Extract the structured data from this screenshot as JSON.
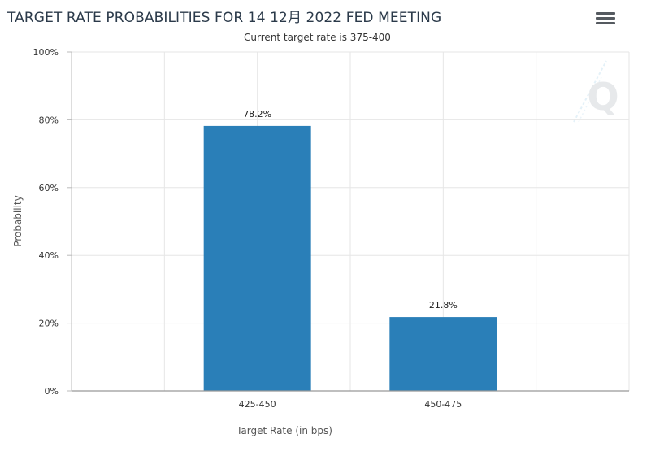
{
  "header": {
    "title": "TARGET RATE PROBABILITIES FOR 14 12月 2022 FED MEETING",
    "subtitle": "Current target rate is 375-400",
    "menu_icon": "hamburger-menu-icon"
  },
  "watermark": {
    "letter": "Q",
    "icon": "quikstrike-logo-icon"
  },
  "colors": {
    "bar": "#2a7fb8",
    "grid": "#e6e6e6",
    "axis": "#bbbbbb"
  },
  "chart_data": {
    "type": "bar",
    "title": "TARGET RATE PROBABILITIES FOR 14 12月 2022 FED MEETING",
    "subtitle": "Current target rate is 375-400",
    "xlabel": "Target Rate (in bps)",
    "ylabel": "Probability",
    "categories": [
      "425-450",
      "450-475"
    ],
    "values": [
      78.2,
      21.8
    ],
    "data_labels": [
      "78.2%",
      "21.8%"
    ],
    "ylim": [
      0,
      100
    ],
    "yticks": [
      0,
      20,
      40,
      60,
      80,
      100
    ],
    "ytick_labels": [
      "0%",
      "20%",
      "40%",
      "60%",
      "80%",
      "100%"
    ],
    "grid": true,
    "legend": "none"
  }
}
